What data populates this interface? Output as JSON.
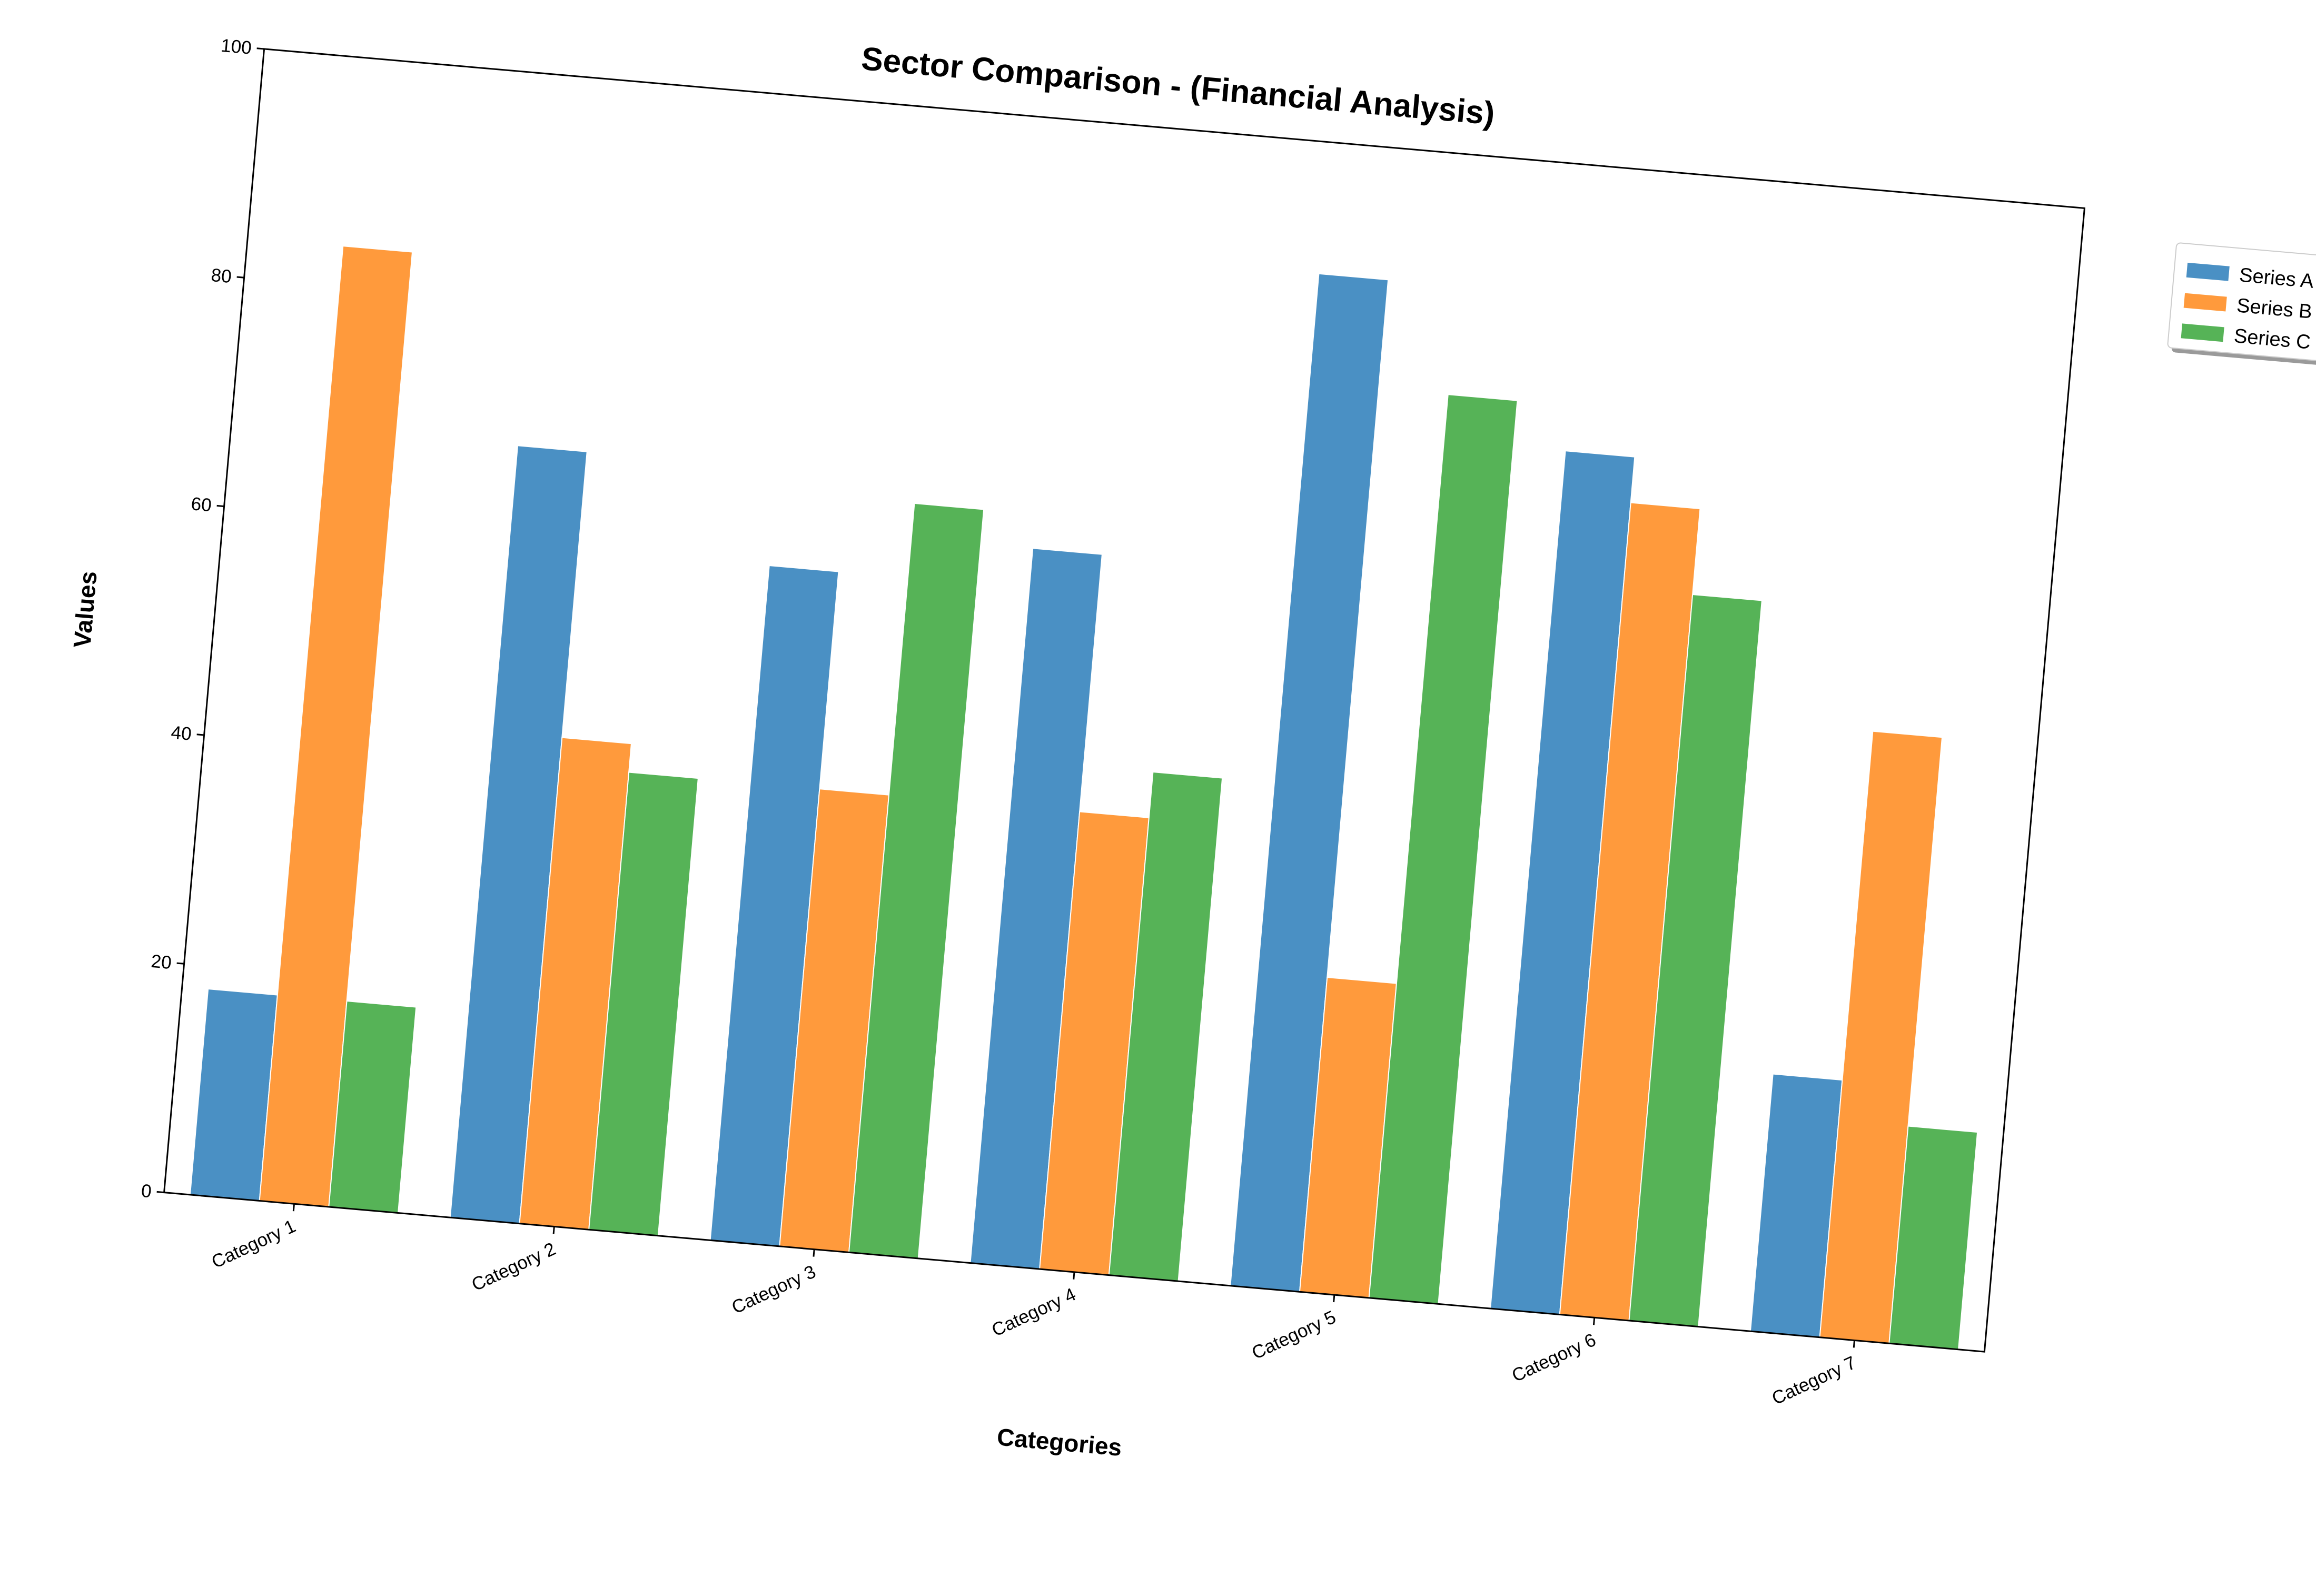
{
  "chart_data": {
    "type": "bar",
    "title": "Sector Comparison - (Financial Analysis)",
    "xlabel": "Categories",
    "ylabel": "Values",
    "categories": [
      "Category 1",
      "Category 2",
      "Category 3",
      "Category 4",
      "Category 5",
      "Category 6",
      "Category 7"
    ],
    "ylim": [
      0,
      100
    ],
    "yticks": [
      "0",
      "20",
      "40",
      "60",
      "80",
      "100"
    ],
    "grid": false,
    "legend_position": "upper right, outside plot",
    "rotation_deg": 5,
    "series": [
      {
        "name": "Series A",
        "color": "#4a90c4",
        "values": [
          18.0,
          67.5,
          59.0,
          62.5,
          88.5,
          75.0,
          22.5
        ]
      },
      {
        "name": "Series B",
        "color": "#ff9a3c",
        "values": [
          83.5,
          42.5,
          40.0,
          40.0,
          27.5,
          71.0,
          53.0
        ]
      },
      {
        "name": "Series C",
        "color": "#56b357",
        "values": [
          18.0,
          40.0,
          65.5,
          44.0,
          79.0,
          63.5,
          19.0
        ]
      }
    ]
  }
}
